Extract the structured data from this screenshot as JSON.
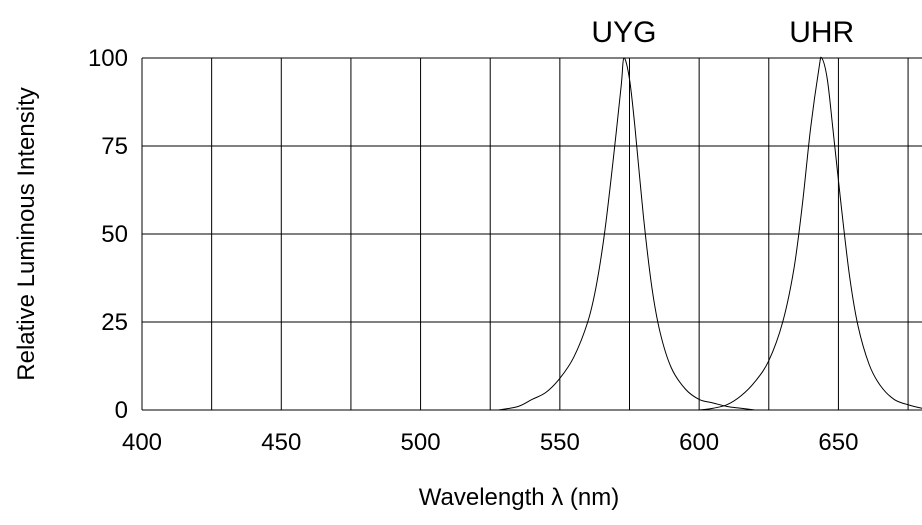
{
  "chart_data": {
    "type": "line",
    "xlabel": "Wavelength  λ (nm)",
    "ylabel": "Relative Luminous Intensity",
    "xlim": [
      400,
      680
    ],
    "ylim": [
      0,
      100
    ],
    "x_ticks": [
      "400",
      "450",
      "500",
      "550",
      "600",
      "650"
    ],
    "y_ticks": [
      "0",
      "25",
      "50",
      "75",
      "100"
    ],
    "grid": true,
    "series": [
      {
        "name": "UYG",
        "x": [
          528,
          535,
          540,
          545,
          550,
          555,
          560,
          563,
          566,
          569,
          572,
          573,
          575,
          577,
          580,
          583,
          586,
          590,
          595,
          600,
          605,
          610,
          615,
          620
        ],
        "y": [
          0,
          1,
          3,
          5,
          9,
          15,
          25,
          35,
          50,
          70,
          92,
          100,
          94,
          80,
          55,
          35,
          22,
          12,
          6,
          3,
          2,
          1,
          0.5,
          0
        ]
      },
      {
        "name": "UHR",
        "x": [
          600,
          605,
          610,
          615,
          620,
          625,
          630,
          634,
          637,
          640,
          643,
          644,
          646,
          648,
          651,
          654,
          657,
          661,
          665,
          670,
          675,
          680,
          684
        ],
        "y": [
          0,
          0.5,
          1.5,
          4,
          8,
          14,
          25,
          40,
          58,
          80,
          97,
          100,
          94,
          80,
          58,
          38,
          24,
          13,
          7,
          3,
          1.5,
          0.5,
          0
        ]
      }
    ]
  }
}
